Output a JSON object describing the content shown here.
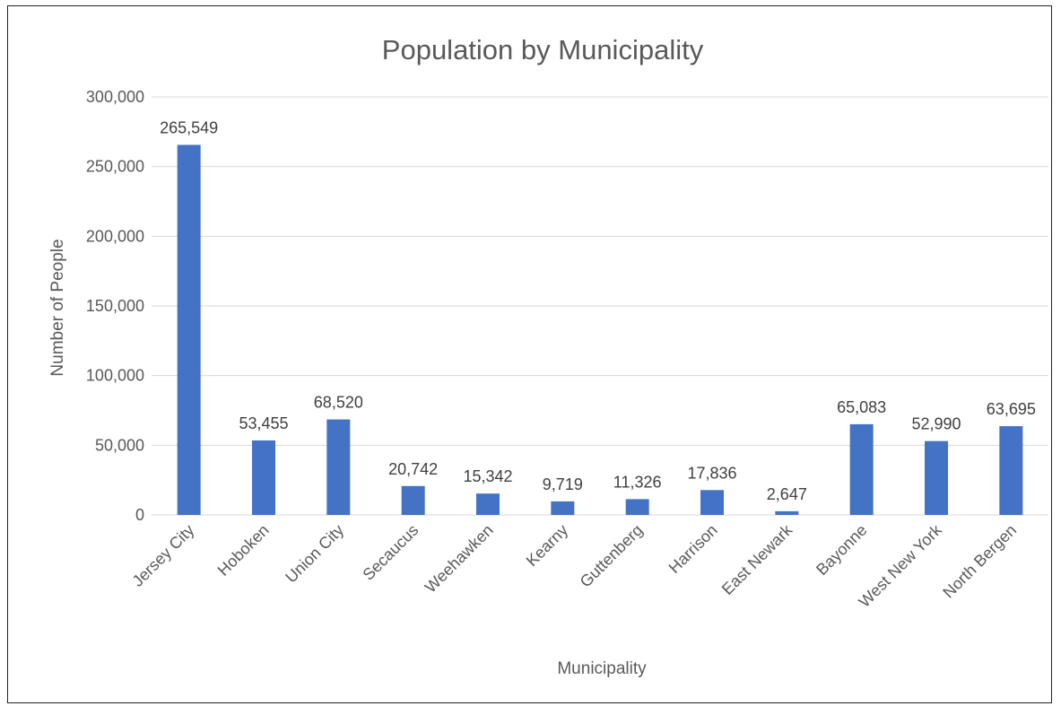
{
  "chart_data": {
    "type": "bar",
    "title": "Population by Municipality",
    "xlabel": "Municipality",
    "ylabel": "Number of People",
    "categories": [
      "Jersey City",
      "Hoboken",
      "Union City",
      "Secaucus",
      "Weehawken",
      "Kearny",
      "Guttenberg",
      "Harrison",
      "East Newark",
      "Bayonne",
      "West New York",
      "North Bergen"
    ],
    "values": [
      265549,
      53455,
      68520,
      20742,
      15342,
      9719,
      11326,
      17836,
      2647,
      65083,
      52990,
      63695
    ],
    "data_labels": [
      "265,549",
      "53,455",
      "68,520",
      "20,742",
      "15,342",
      "9,719",
      "11,326",
      "17,836",
      "2,647",
      "65,083",
      "52,990",
      "63,695"
    ],
    "ylim": [
      0,
      300000
    ],
    "yticks": [
      0,
      50000,
      100000,
      150000,
      200000,
      250000,
      300000
    ],
    "ytick_labels": [
      "0",
      "50,000",
      "100,000",
      "150,000",
      "200,000",
      "250,000",
      "300,000"
    ],
    "grid": true,
    "legend": "none",
    "colors": {
      "bar": "#4472C4",
      "grid": "#D9D9D9",
      "text": "#595959"
    }
  }
}
